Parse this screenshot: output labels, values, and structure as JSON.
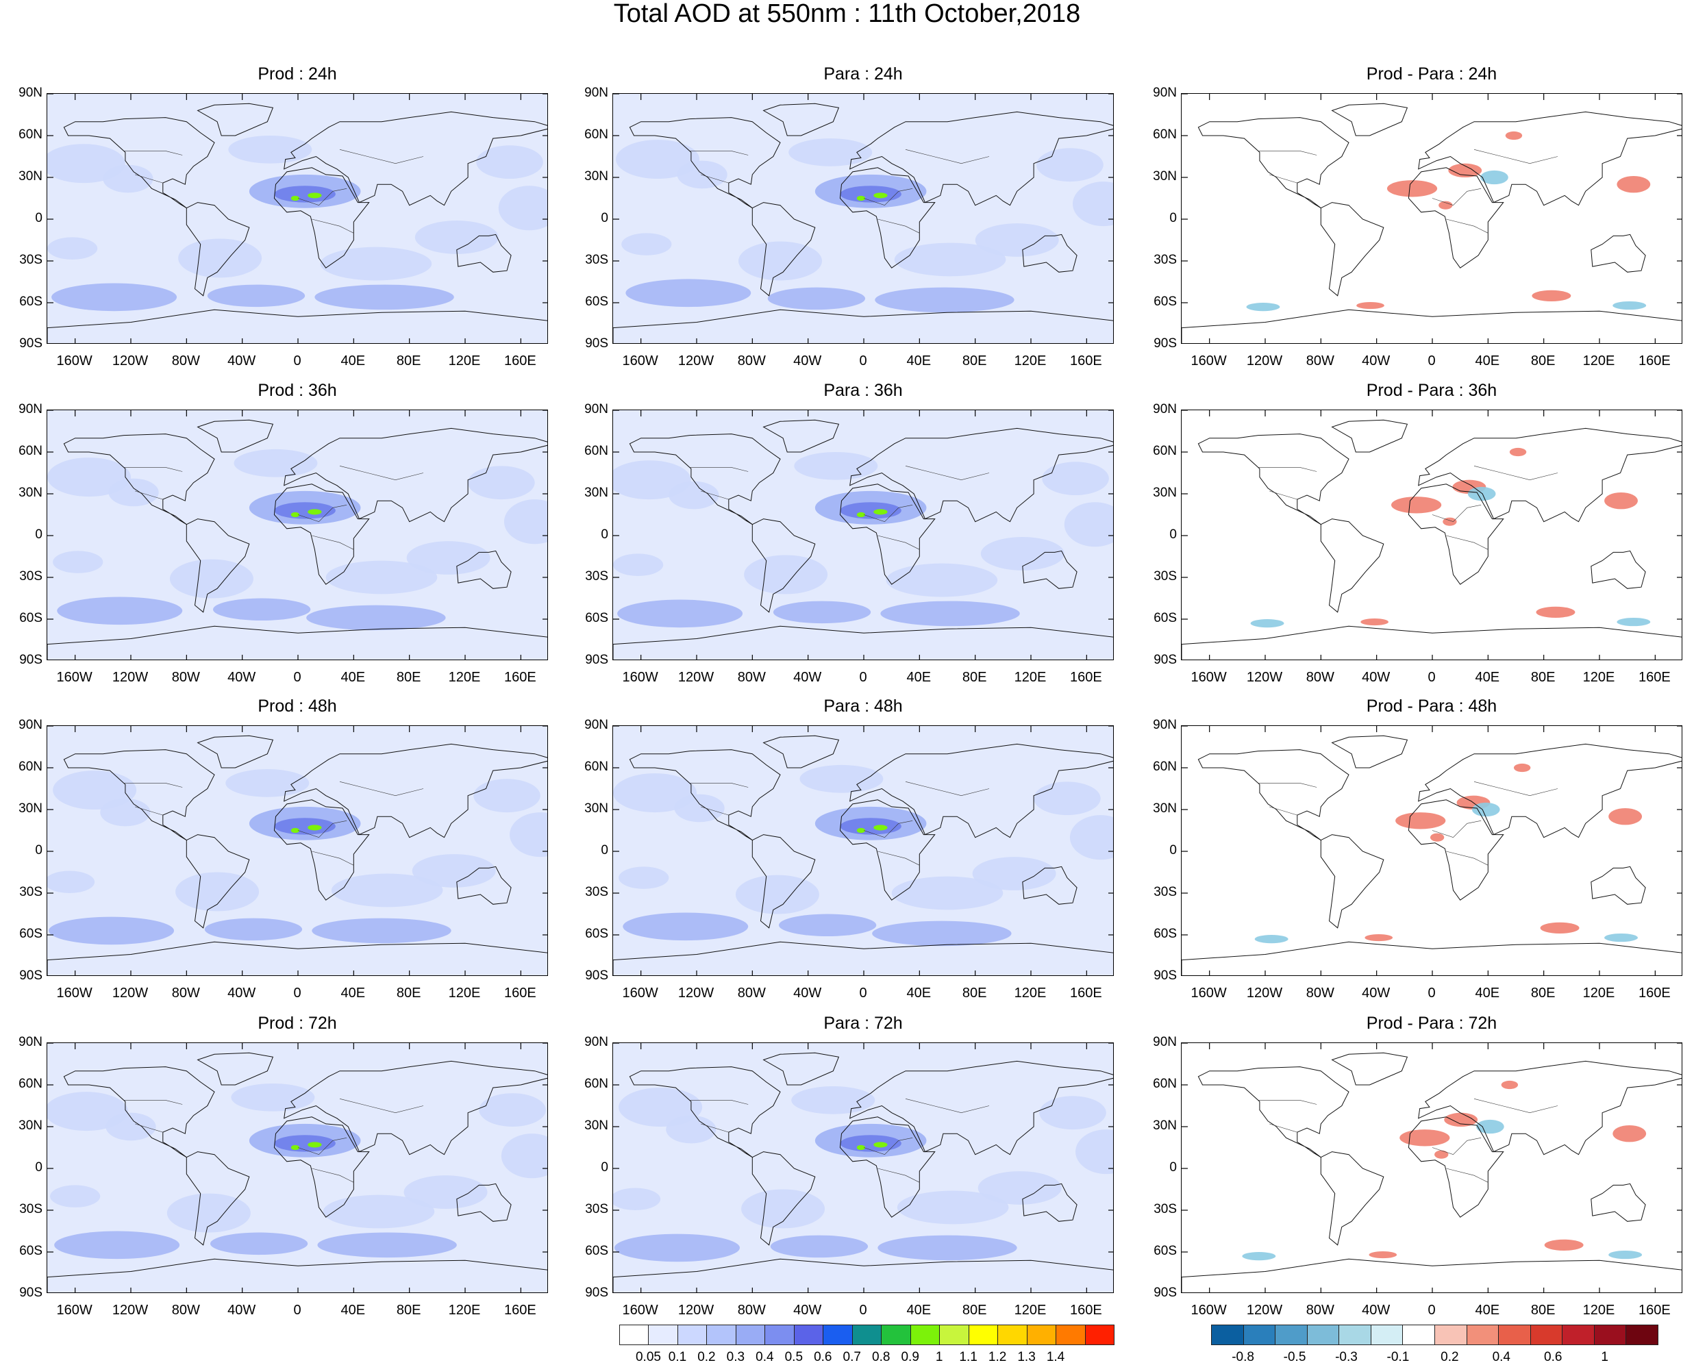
{
  "title": "Total AOD at 550nm : 11th October,2018",
  "rows": [
    {
      "panels": [
        {
          "title": "Prod : 24h",
          "kind": "aod"
        },
        {
          "title": "Para : 24h",
          "kind": "aod"
        },
        {
          "title": "Prod - Para : 24h",
          "kind": "diff"
        }
      ]
    },
    {
      "panels": [
        {
          "title": "Prod : 36h",
          "kind": "aod"
        },
        {
          "title": "Para : 36h",
          "kind": "aod"
        },
        {
          "title": "Prod - Para : 36h",
          "kind": "diff"
        }
      ]
    },
    {
      "panels": [
        {
          "title": "Prod : 48h",
          "kind": "aod"
        },
        {
          "title": "Para : 48h",
          "kind": "aod"
        },
        {
          "title": "Prod - Para : 48h",
          "kind": "diff"
        }
      ]
    },
    {
      "panels": [
        {
          "title": "Prod : 72h",
          "kind": "aod"
        },
        {
          "title": "Para : 72h",
          "kind": "aod"
        },
        {
          "title": "Prod - Para : 72h",
          "kind": "diff"
        }
      ]
    }
  ],
  "lat_ticks": [
    "90N",
    "60N",
    "30N",
    "0",
    "30S",
    "60S",
    "90S"
  ],
  "lon_ticks": [
    "160W",
    "120W",
    "80W",
    "40W",
    "0",
    "40E",
    "80E",
    "120E",
    "160E"
  ],
  "aod_colorbar": {
    "labels": [
      "0.05",
      "0.1",
      "0.2",
      "0.3",
      "0.4",
      "0.5",
      "0.6",
      "0.7",
      "0.8",
      "0.9",
      "1",
      "1.1",
      "1.2",
      "1.3",
      "1.4"
    ],
    "colors": [
      "#ffffff",
      "#e6ecff",
      "#ccd8ff",
      "#b3c4fb",
      "#99acf5",
      "#7c8ef0",
      "#5b63e8",
      "#1a5ef0",
      "#0f8f8f",
      "#23c23c",
      "#7cf20a",
      "#c8f53c",
      "#ffff00",
      "#ffd700",
      "#ffb000",
      "#ff7a00",
      "#ff2000"
    ]
  },
  "diff_colorbar": {
    "labels": [
      "-0.8",
      "-0.5",
      "-0.3",
      "-0.1",
      "0.2",
      "0.4",
      "0.6",
      "1"
    ],
    "colors": [
      "#0b5fa0",
      "#2a7fbb",
      "#4f9cc9",
      "#7dbcd9",
      "#a9d8e6",
      "#d4eef5",
      "#ffffff",
      "#f8c3b6",
      "#f2907a",
      "#e8604a",
      "#d83a2c",
      "#c0202a",
      "#9a0f1e",
      "#6e0510"
    ]
  },
  "style": {
    "ocean_haze": "#e3eafd",
    "aod_low": "#cdd9fc",
    "aod_mid": "#a5b7f6",
    "aod_high": "#7384ec",
    "dust_green": "#7cf20a",
    "diff_red": "#f08070",
    "diff_blue": "#8ccbe3",
    "coast": "#111111"
  }
}
